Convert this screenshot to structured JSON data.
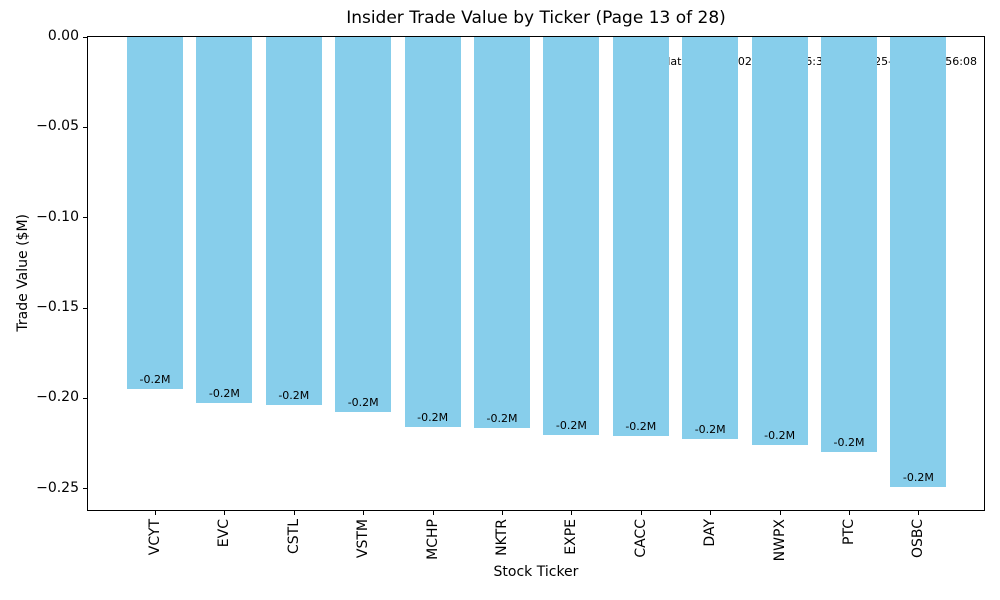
{
  "figure": {
    "background_color": "#FFFFFF"
  },
  "chart_data": {
    "type": "bar",
    "title": "Insider Trade Value by Ticker (Page 13 of 28)",
    "xlabel": "Stock Ticker",
    "ylabel": "Trade Value ($M)",
    "categories": [
      "VCYT",
      "EVC",
      "CSTL",
      "VSTM",
      "MCHP",
      "NKTR",
      "EXPE",
      "CACC",
      "DAY",
      "NWPX",
      "PTC",
      "OSBC"
    ],
    "values": [
      -0.195,
      -0.2025,
      -0.2036,
      -0.2073,
      -0.216,
      -0.2165,
      -0.2202,
      -0.221,
      -0.2225,
      -0.2258,
      -0.2295,
      -0.2493
    ],
    "bar_labels": [
      "-0.2M",
      "-0.2M",
      "-0.2M",
      "-0.2M",
      "-0.2M",
      "-0.2M",
      "-0.2M",
      "-0.2M",
      "-0.2M",
      "-0.2M",
      "-0.2M",
      "-0.2M"
    ],
    "bar_color": "#87CEEB",
    "ylim": [
      -0.2618,
      0
    ],
    "yticks": [
      0,
      -0.05,
      -0.1,
      -0.15,
      -0.2,
      -0.25
    ],
    "ytick_labels": [
      "0.00",
      "−0.05",
      "−0.10",
      "−0.15",
      "−0.20",
      "−0.25"
    ],
    "grid": false,
    "legend": null,
    "annotation": {
      "text": "Trade date range: 2025-11-25 16:31:55 – 2025-11-26 21:56:08",
      "facecolor": "#FFFFFF",
      "alpha": 0.55,
      "position": "top-right"
    }
  }
}
